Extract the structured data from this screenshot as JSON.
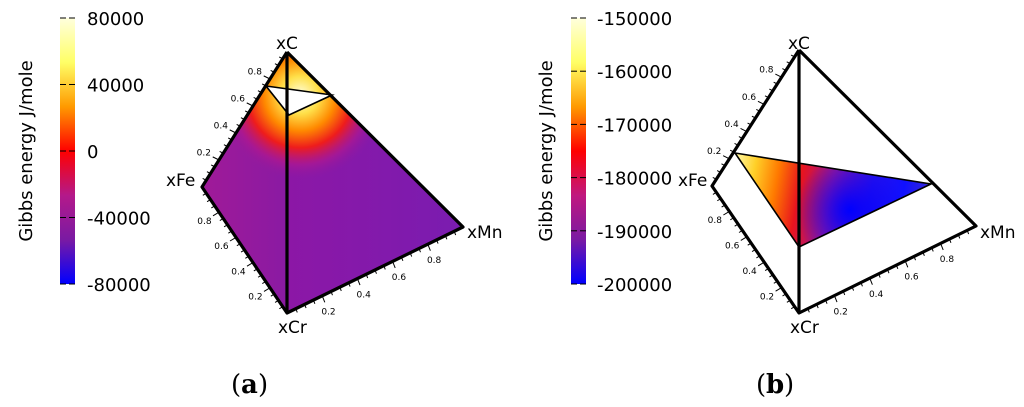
{
  "chart_data": [
    {
      "type": "heatmap",
      "title": "",
      "caption_letter": "a",
      "colorbar": {
        "label": "Gibbs energy J/mole",
        "ticks": [
          "80000",
          "40000",
          "0",
          "-40000",
          "-80000"
        ],
        "range": [
          -80000,
          80000
        ],
        "colormap": [
          "#0000ff",
          "#7a1aa3",
          "#b4198a",
          "#ff0000",
          "#ff9a00",
          "#ffff66",
          "#ffffdd"
        ]
      },
      "vertices": [
        "xC",
        "xFe",
        "xCr",
        "xMn"
      ],
      "axis_ticks": [
        "0.2",
        "0.4",
        "0.6",
        "0.8"
      ],
      "edge_axes": [
        {
          "edge": "xC-xFe",
          "ticks": [
            "0.2",
            "0.4",
            "0.6",
            "0.8"
          ]
        },
        {
          "edge": "xFe-xCr",
          "ticks": [
            "0.2",
            "0.4",
            "0.6",
            "0.8"
          ]
        },
        {
          "edge": "xCr-xMn",
          "ticks": [
            "0.2",
            "0.4",
            "0.6",
            "0.8"
          ]
        }
      ]
    },
    {
      "type": "heatmap",
      "title": "",
      "caption_letter": "b",
      "colorbar": {
        "label": "Gibbs energy J/mole",
        "ticks": [
          "-150000",
          "-160000",
          "-170000",
          "-180000",
          "-190000",
          "-200000"
        ],
        "range": [
          -200000,
          -150000
        ],
        "colormap": [
          "#0000ff",
          "#7a1aa3",
          "#c0187f",
          "#ff0000",
          "#ff9a00",
          "#ffff66",
          "#ffffdd"
        ]
      },
      "vertices": [
        "xC",
        "xFe",
        "xCr",
        "xMn"
      ],
      "axis_ticks": [
        "0.2",
        "0.4",
        "0.6",
        "0.8"
      ],
      "edge_axes": [
        {
          "edge": "xC-xFe",
          "ticks": [
            "0.2",
            "0.4",
            "0.6",
            "0.8"
          ]
        },
        {
          "edge": "xFe-xCr",
          "ticks": [
            "0.2",
            "0.4",
            "0.6",
            "0.8"
          ]
        },
        {
          "edge": "xCr-xMn",
          "ticks": [
            "0.2",
            "0.4",
            "0.6",
            "0.8"
          ]
        }
      ]
    }
  ]
}
